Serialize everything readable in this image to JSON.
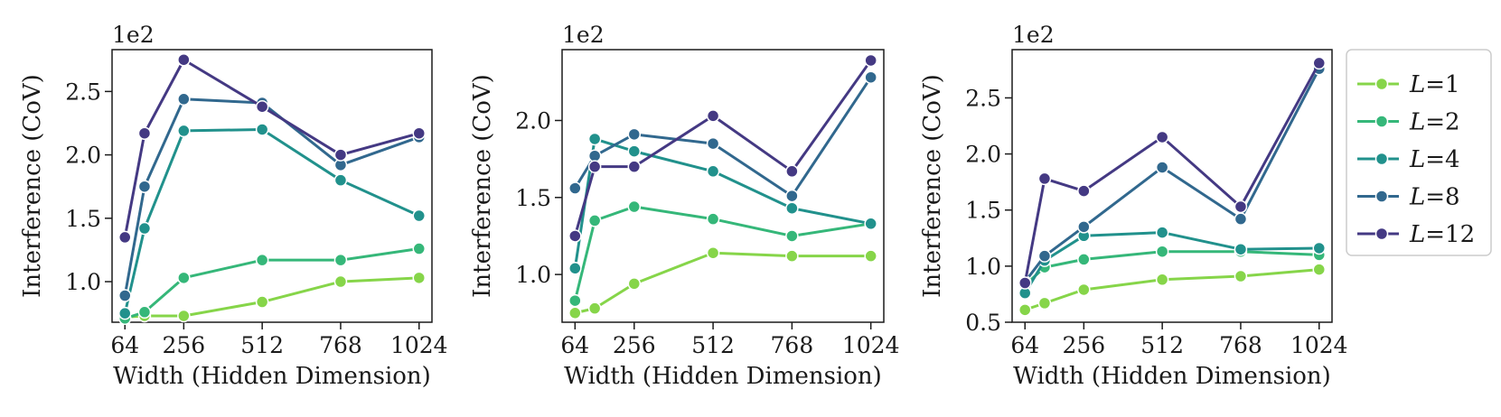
{
  "colors": {
    "L1": "#86d549",
    "L2": "#35b779",
    "L4": "#21918c",
    "L8": "#31688e",
    "L12": "#443983"
  },
  "legend": {
    "items": [
      {
        "var": "L",
        "eq": "=1",
        "color": "#86d549"
      },
      {
        "var": "L",
        "eq": "=2",
        "color": "#35b779"
      },
      {
        "var": "L",
        "eq": "=4",
        "color": "#21918c"
      },
      {
        "var": "L",
        "eq": "=8",
        "color": "#31688e"
      },
      {
        "var": "L",
        "eq": "=12",
        "color": "#443983"
      }
    ]
  },
  "chart_data": [
    {
      "type": "line",
      "xlabel": "Width (Hidden Dimension)",
      "ylabel": "Interference (CoV)",
      "y_multiplier": "1e2",
      "xticks": [
        64,
        256,
        512,
        768,
        1024
      ],
      "yticks": [
        1.0,
        1.5,
        2.0,
        2.5
      ],
      "xlim": [
        22,
        1066
      ],
      "ylim": [
        0.68,
        2.83
      ],
      "x": [
        64,
        128,
        256,
        512,
        768,
        1024
      ],
      "series": [
        {
          "name": "L=1",
          "values": [
            0.72,
            0.73,
            0.73,
            0.84,
            1.0,
            1.03
          ]
        },
        {
          "name": "L=2",
          "values": [
            0.71,
            0.76,
            1.03,
            1.17,
            1.17,
            1.26
          ]
        },
        {
          "name": "L=4",
          "values": [
            0.75,
            1.42,
            2.19,
            2.2,
            1.8,
            1.52
          ]
        },
        {
          "name": "L=8",
          "values": [
            0.89,
            1.75,
            2.44,
            2.41,
            1.92,
            2.14
          ]
        },
        {
          "name": "L=12",
          "values": [
            1.35,
            2.17,
            2.75,
            2.38,
            2.0,
            2.17
          ]
        }
      ]
    },
    {
      "type": "line",
      "xlabel": "Width (Hidden Dimension)",
      "ylabel": "Interference (CoV)",
      "y_multiplier": "1e2",
      "xticks": [
        64,
        256,
        512,
        768,
        1024
      ],
      "yticks": [
        1.0,
        1.5,
        2.0
      ],
      "xlim": [
        22,
        1066
      ],
      "ylim": [
        0.69,
        2.46
      ],
      "x": [
        64,
        128,
        256,
        512,
        768,
        1024
      ],
      "series": [
        {
          "name": "L=1",
          "values": [
            0.75,
            0.78,
            0.94,
            1.14,
            1.12,
            1.12
          ]
        },
        {
          "name": "L=2",
          "values": [
            0.83,
            1.35,
            1.44,
            1.36,
            1.25,
            1.33
          ]
        },
        {
          "name": "L=4",
          "values": [
            1.04,
            1.88,
            1.8,
            1.67,
            1.43,
            1.33
          ]
        },
        {
          "name": "L=8",
          "values": [
            1.56,
            1.77,
            1.91,
            1.85,
            1.51,
            2.28
          ]
        },
        {
          "name": "L=12",
          "values": [
            1.25,
            1.7,
            1.7,
            2.03,
            1.67,
            2.39
          ]
        }
      ]
    },
    {
      "type": "line",
      "xlabel": "Width (Hidden Dimension)",
      "ylabel": "Interference (CoV)",
      "y_multiplier": "1e2",
      "xticks": [
        64,
        256,
        512,
        768,
        1024
      ],
      "yticks": [
        0.5,
        1.0,
        1.5,
        2.0,
        2.5
      ],
      "xlim": [
        22,
        1066
      ],
      "ylim": [
        0.5,
        2.93
      ],
      "x": [
        64,
        128,
        256,
        512,
        768,
        1024
      ],
      "series": [
        {
          "name": "L=1",
          "values": [
            0.61,
            0.67,
            0.79,
            0.88,
            0.91,
            0.97
          ]
        },
        {
          "name": "L=2",
          "values": [
            0.83,
            0.99,
            1.06,
            1.13,
            1.13,
            1.1
          ]
        },
        {
          "name": "L=4",
          "values": [
            0.76,
            1.05,
            1.27,
            1.3,
            1.15,
            1.16
          ]
        },
        {
          "name": "L=8",
          "values": [
            0.86,
            1.09,
            1.35,
            1.88,
            1.42,
            2.76
          ]
        },
        {
          "name": "L=12",
          "values": [
            0.85,
            1.78,
            1.67,
            2.15,
            1.53,
            2.81
          ]
        }
      ]
    }
  ]
}
